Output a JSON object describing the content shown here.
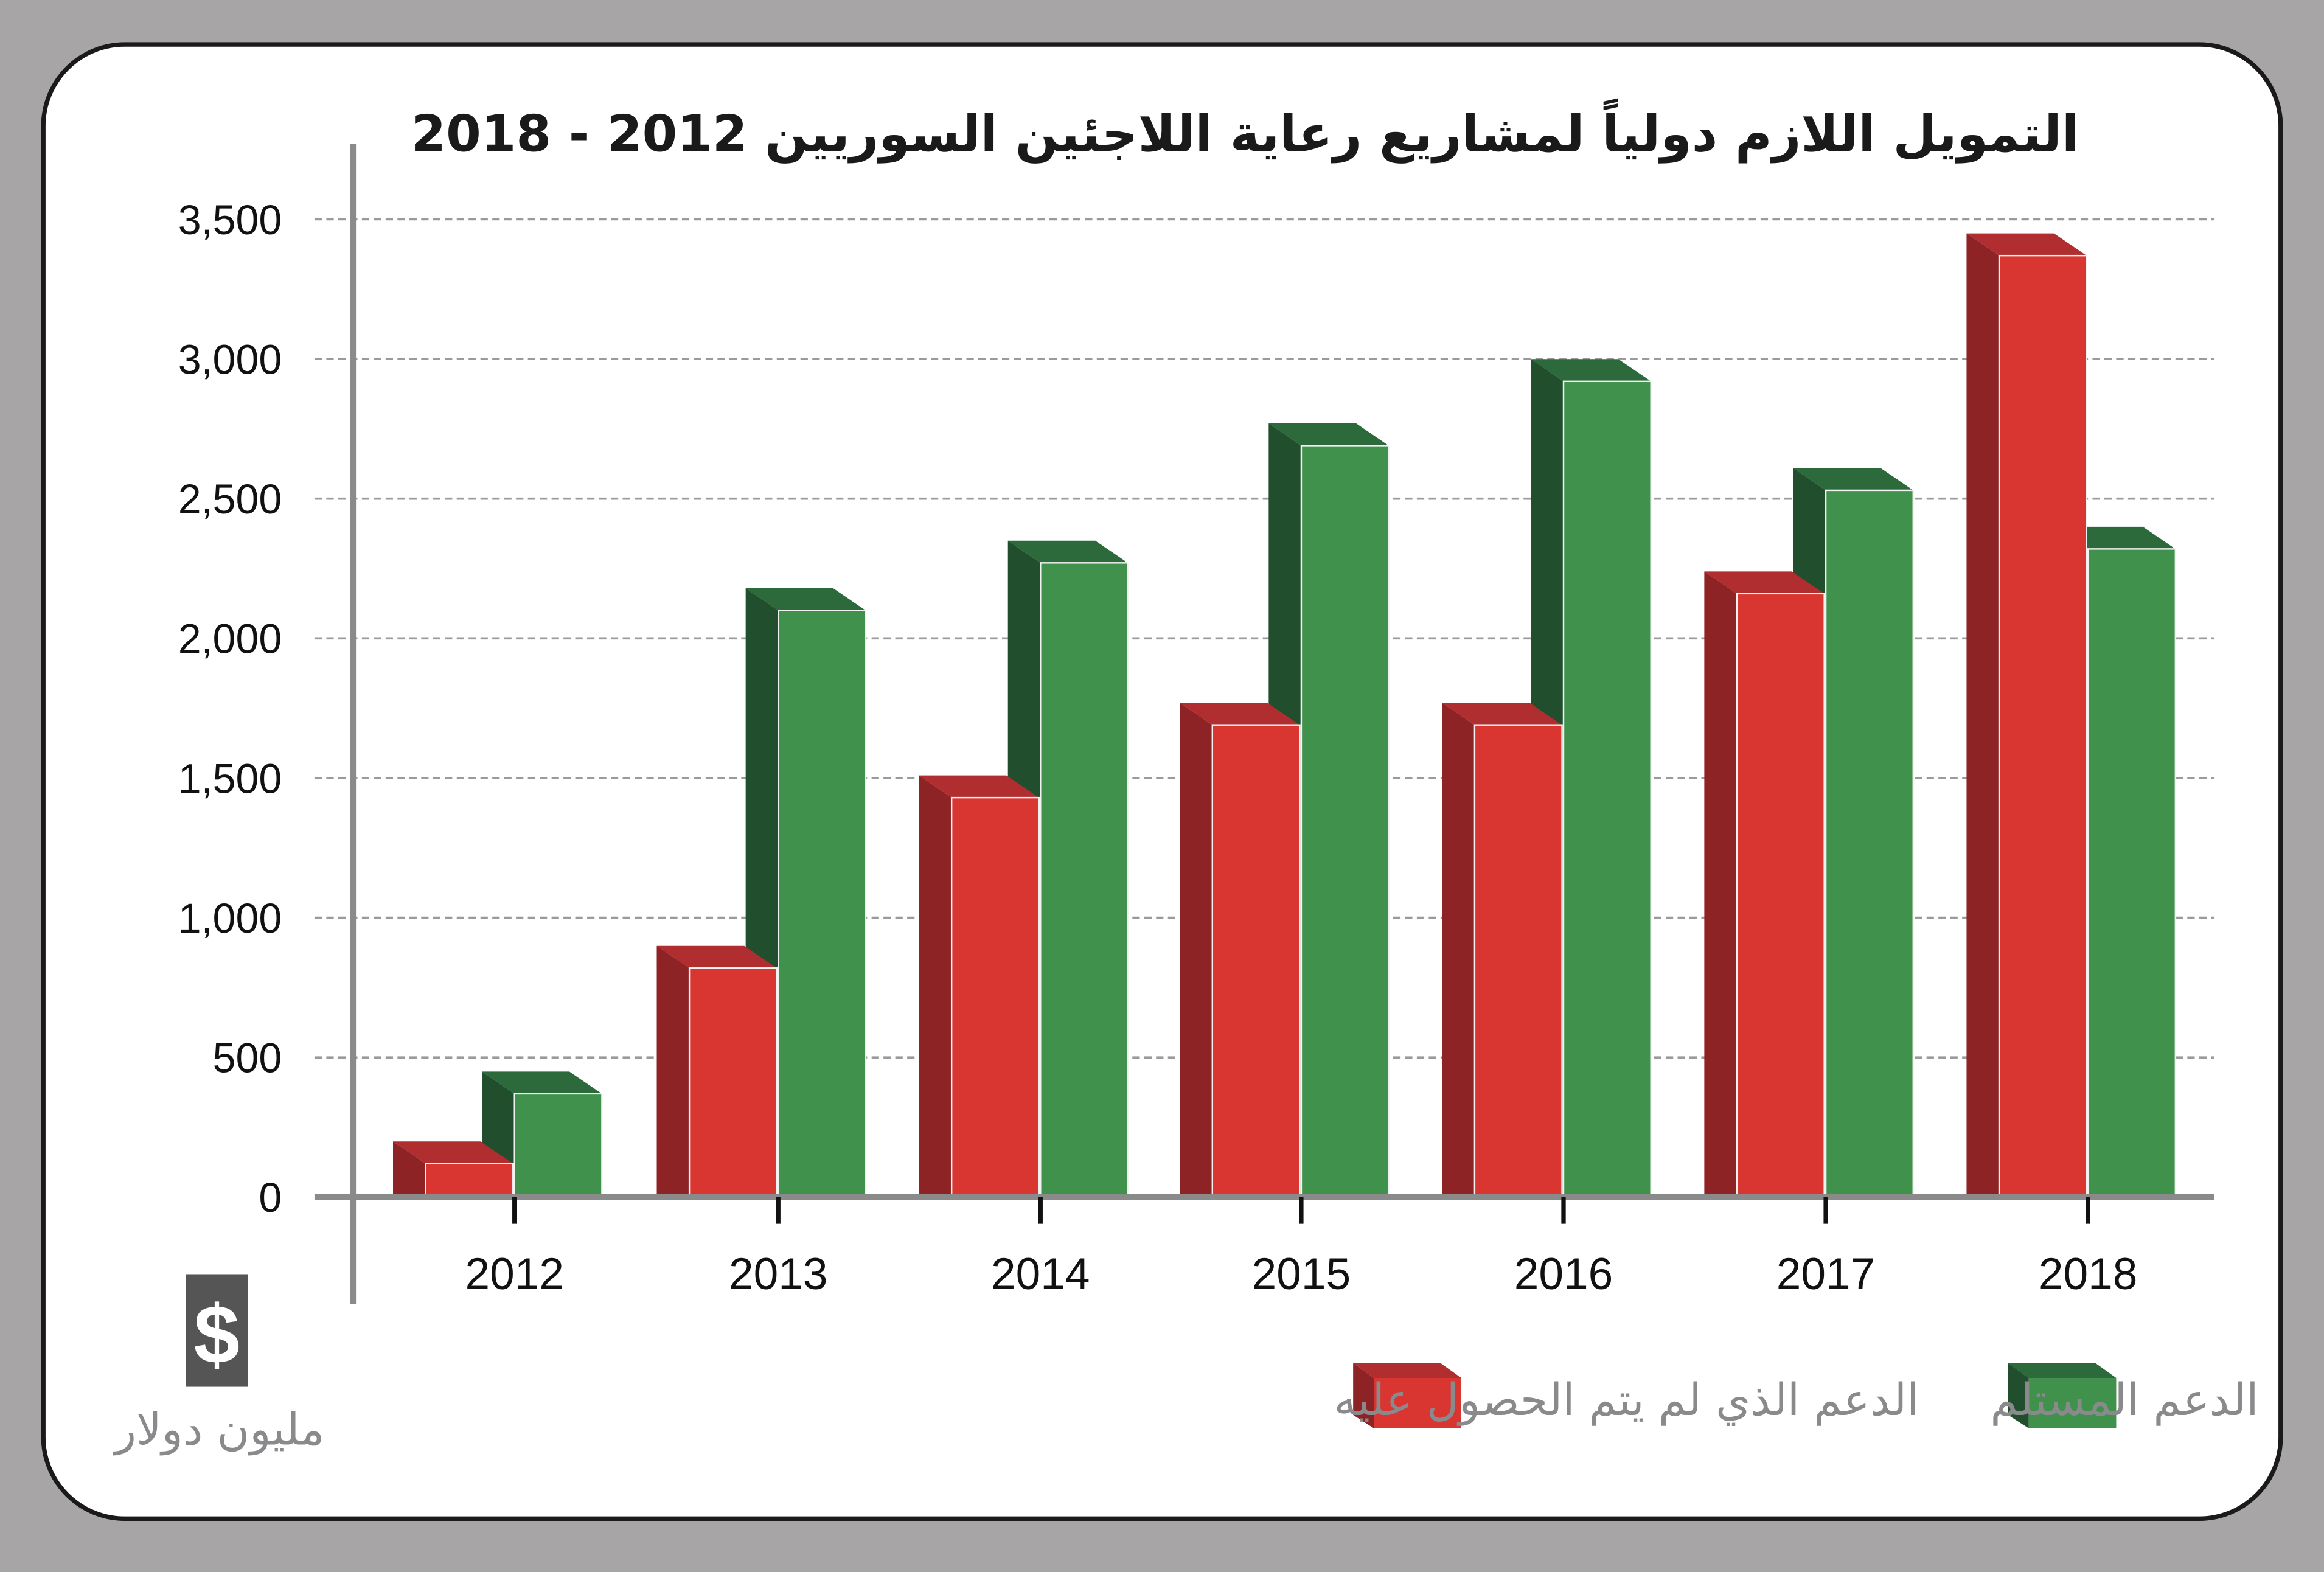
{
  "chart_data": {
    "type": "bar",
    "title": "التمويل اللازم دولياً لمشاريع رعاية اللاجئين السوريين  2012 - 2018",
    "ylabel": "مليون دولار",
    "unit_icon": "dollar-icon",
    "unit_icon_glyph": "$",
    "categories": [
      "2012",
      "2013",
      "2014",
      "2015",
      "2016",
      "2017",
      "2018"
    ],
    "ylim": [
      0,
      3500
    ],
    "yticks": [
      0,
      500,
      1000,
      1500,
      2000,
      2500,
      3000,
      3500
    ],
    "ytick_labels": [
      "0",
      "500",
      "1,000",
      "1,500",
      "2,000",
      "2,500",
      "3,000",
      "3,500"
    ],
    "grid": true,
    "legend_position": "bottom",
    "series": [
      {
        "name": "الدعم الذي لم يتم الحصول عليه",
        "color": "#d93632",
        "side": "#8e2326",
        "top": "#b02d30",
        "values": [
          120,
          820,
          1430,
          1690,
          1690,
          2160,
          3370
        ]
      },
      {
        "name": "الدعم المستلم",
        "color": "#3f914c",
        "side": "#214f2d",
        "top": "#2c6a3b",
        "values": [
          370,
          2100,
          2270,
          2690,
          2920,
          2530,
          2320
        ]
      }
    ]
  }
}
